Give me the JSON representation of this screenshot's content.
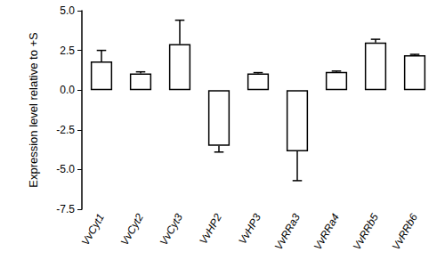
{
  "chart_data": {
    "type": "bar",
    "y_label": "Expression level relative to +S",
    "categories": [
      "VvCyt1",
      "VvCyt2",
      "VvCyt3",
      "VvHP2",
      "VvHP3",
      "VvRRa3",
      "VvRRa4",
      "VvRRb5",
      "VvRRb6"
    ],
    "values": [
      1.8,
      1.05,
      2.9,
      -3.5,
      1.05,
      -3.85,
      1.15,
      3.0,
      2.2
    ],
    "errors": [
      0.7,
      0.1,
      1.5,
      0.4,
      0.05,
      1.85,
      0.05,
      0.2,
      0.05
    ],
    "color": "#ffffff",
    "ylim": [
      -7.5,
      5.0
    ],
    "yticks": [
      {
        "value": -7.5,
        "label": "-7.5"
      },
      {
        "value": -5,
        "label": "-5.0"
      },
      {
        "value": -2.5,
        "label": "-2.5"
      },
      {
        "value": 0,
        "label": "0.0"
      },
      {
        "value": 2.5,
        "label": "2.5"
      },
      {
        "value": 5,
        "label": "5.0"
      }
    ],
    "grid": false
  }
}
